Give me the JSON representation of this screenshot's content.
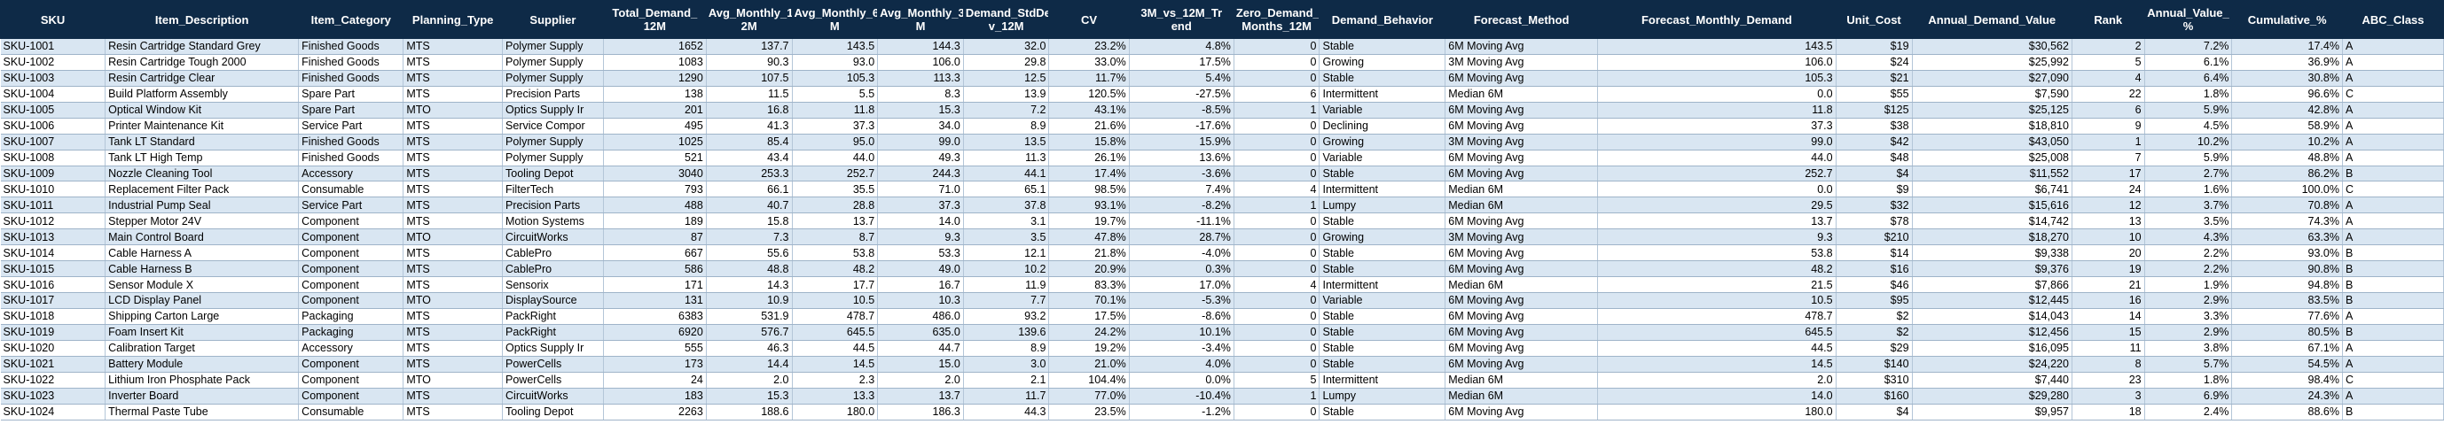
{
  "columns": [
    "SKU",
    "Item_Description",
    "Item_Category",
    "Planning_Type",
    "Supplier",
    "Total_Demand_12M",
    "Avg_Monthly_12M",
    "Avg_Monthly_6M",
    "Avg_Monthly_3M",
    "Demand_StdDev_12M",
    "CV",
    "3M_vs_12M_Trend",
    "Zero_Demand_Months_12M",
    "Demand_Behavior",
    "Forecast_Method",
    "Forecast_Monthly_Demand",
    "Unit_Cost",
    "Annual_Demand_Value",
    "Rank",
    "Annual_Value_%",
    "Cumulative_%",
    "ABC_Class"
  ],
  "header_lines": [
    [
      "SKU"
    ],
    [
      "Item_Description"
    ],
    [
      "Item_Category"
    ],
    [
      "Planning_Type"
    ],
    [
      "Supplier"
    ],
    [
      "Total_Demand_",
      "12M"
    ],
    [
      "Avg_Monthly_1",
      "2M"
    ],
    [
      "Avg_Monthly_6",
      "M"
    ],
    [
      "Avg_Monthly_3",
      "M"
    ],
    [
      "Demand_StdDe",
      "v_12M"
    ],
    [
      "CV"
    ],
    [
      "3M_vs_12M_Tr",
      "end"
    ],
    [
      "Zero_Demand_",
      "Months_12M"
    ],
    [
      "Demand_Behavior"
    ],
    [
      "Forecast_Method"
    ],
    [
      "Forecast_Monthly_Demand"
    ],
    [
      "Unit_Cost"
    ],
    [
      "Annual_Demand_Value"
    ],
    [
      "Rank"
    ],
    [
      "Annual_Value_",
      "%"
    ],
    [
      "Cumulative_%"
    ],
    [
      "ABC_Class"
    ]
  ],
  "rows": [
    [
      "SKU-1001",
      "Resin Cartridge Standard Grey",
      "Finished Goods",
      "MTS",
      "Polymer Supply",
      "1652",
      "137.7",
      "143.5",
      "144.3",
      "32.0",
      "23.2%",
      "4.8%",
      "0",
      "Stable",
      "6M Moving Avg",
      "143.5",
      "$19",
      "$30,562",
      "2",
      "7.2%",
      "17.4%",
      "A"
    ],
    [
      "SKU-1002",
      "Resin Cartridge Tough 2000",
      "Finished Goods",
      "MTS",
      "Polymer Supply",
      "1083",
      "90.3",
      "93.0",
      "106.0",
      "29.8",
      "33.0%",
      "17.5%",
      "0",
      "Growing",
      "3M Moving Avg",
      "106.0",
      "$24",
      "$25,992",
      "5",
      "6.1%",
      "36.9%",
      "A"
    ],
    [
      "SKU-1003",
      "Resin Cartridge Clear",
      "Finished Goods",
      "MTS",
      "Polymer Supply",
      "1290",
      "107.5",
      "105.3",
      "113.3",
      "12.5",
      "11.7%",
      "5.4%",
      "0",
      "Stable",
      "6M Moving Avg",
      "105.3",
      "$21",
      "$27,090",
      "4",
      "6.4%",
      "30.8%",
      "A"
    ],
    [
      "SKU-1004",
      "Build Platform Assembly",
      "Spare Part",
      "MTS",
      "Precision Parts",
      "138",
      "11.5",
      "5.5",
      "8.3",
      "13.9",
      "120.5%",
      "-27.5%",
      "6",
      "Intermittent",
      "Median 6M",
      "0.0",
      "$55",
      "$7,590",
      "22",
      "1.8%",
      "96.6%",
      "C"
    ],
    [
      "SKU-1005",
      "Optical Window Kit",
      "Spare Part",
      "MTO",
      "Optics Supply Ir",
      "201",
      "16.8",
      "11.8",
      "15.3",
      "7.2",
      "43.1%",
      "-8.5%",
      "1",
      "Variable",
      "6M Moving Avg",
      "11.8",
      "$125",
      "$25,125",
      "6",
      "5.9%",
      "42.8%",
      "A"
    ],
    [
      "SKU-1006",
      "Printer Maintenance Kit",
      "Service Part",
      "MTS",
      "Service Compor",
      "495",
      "41.3",
      "37.3",
      "34.0",
      "8.9",
      "21.6%",
      "-17.6%",
      "0",
      "Declining",
      "6M Moving Avg",
      "37.3",
      "$38",
      "$18,810",
      "9",
      "4.5%",
      "58.9%",
      "A"
    ],
    [
      "SKU-1007",
      "Tank LT Standard",
      "Finished Goods",
      "MTS",
      "Polymer Supply",
      "1025",
      "85.4",
      "95.0",
      "99.0",
      "13.5",
      "15.8%",
      "15.9%",
      "0",
      "Growing",
      "3M Moving Avg",
      "99.0",
      "$42",
      "$43,050",
      "1",
      "10.2%",
      "10.2%",
      "A"
    ],
    [
      "SKU-1008",
      "Tank LT High Temp",
      "Finished Goods",
      "MTS",
      "Polymer Supply",
      "521",
      "43.4",
      "44.0",
      "49.3",
      "11.3",
      "26.1%",
      "13.6%",
      "0",
      "Variable",
      "6M Moving Avg",
      "44.0",
      "$48",
      "$25,008",
      "7",
      "5.9%",
      "48.8%",
      "A"
    ],
    [
      "SKU-1009",
      "Nozzle Cleaning Tool",
      "Accessory",
      "MTS",
      "Tooling Depot",
      "3040",
      "253.3",
      "252.7",
      "244.3",
      "44.1",
      "17.4%",
      "-3.6%",
      "0",
      "Stable",
      "6M Moving Avg",
      "252.7",
      "$4",
      "$11,552",
      "17",
      "2.7%",
      "86.2%",
      "B"
    ],
    [
      "SKU-1010",
      "Replacement Filter Pack",
      "Consumable",
      "MTS",
      "FilterTech",
      "793",
      "66.1",
      "35.5",
      "71.0",
      "65.1",
      "98.5%",
      "7.4%",
      "4",
      "Intermittent",
      "Median 6M",
      "0.0",
      "$9",
      "$6,741",
      "24",
      "1.6%",
      "100.0%",
      "C"
    ],
    [
      "SKU-1011",
      "Industrial Pump Seal",
      "Service Part",
      "MTS",
      "Precision Parts",
      "488",
      "40.7",
      "28.8",
      "37.3",
      "37.8",
      "93.1%",
      "-8.2%",
      "1",
      "Lumpy",
      "Median 6M",
      "29.5",
      "$32",
      "$15,616",
      "12",
      "3.7%",
      "70.8%",
      "A"
    ],
    [
      "SKU-1012",
      "Stepper Motor 24V",
      "Component",
      "MTS",
      "Motion Systems",
      "189",
      "15.8",
      "13.7",
      "14.0",
      "3.1",
      "19.7%",
      "-11.1%",
      "0",
      "Stable",
      "6M Moving Avg",
      "13.7",
      "$78",
      "$14,742",
      "13",
      "3.5%",
      "74.3%",
      "A"
    ],
    [
      "SKU-1013",
      "Main Control Board",
      "Component",
      "MTO",
      "CircuitWorks",
      "87",
      "7.3",
      "8.7",
      "9.3",
      "3.5",
      "47.8%",
      "28.7%",
      "0",
      "Growing",
      "3M Moving Avg",
      "9.3",
      "$210",
      "$18,270",
      "10",
      "4.3%",
      "63.3%",
      "A"
    ],
    [
      "SKU-1014",
      "Cable Harness A",
      "Component",
      "MTS",
      "CablePro",
      "667",
      "55.6",
      "53.8",
      "53.3",
      "12.1",
      "21.8%",
      "-4.0%",
      "0",
      "Stable",
      "6M Moving Avg",
      "53.8",
      "$14",
      "$9,338",
      "20",
      "2.2%",
      "93.0%",
      "B"
    ],
    [
      "SKU-1015",
      "Cable Harness B",
      "Component",
      "MTS",
      "CablePro",
      "586",
      "48.8",
      "48.2",
      "49.0",
      "10.2",
      "20.9%",
      "0.3%",
      "0",
      "Stable",
      "6M Moving Avg",
      "48.2",
      "$16",
      "$9,376",
      "19",
      "2.2%",
      "90.8%",
      "B"
    ],
    [
      "SKU-1016",
      "Sensor Module X",
      "Component",
      "MTS",
      "Sensorix",
      "171",
      "14.3",
      "17.7",
      "16.7",
      "11.9",
      "83.3%",
      "17.0%",
      "4",
      "Intermittent",
      "Median 6M",
      "21.5",
      "$46",
      "$7,866",
      "21",
      "1.9%",
      "94.8%",
      "B"
    ],
    [
      "SKU-1017",
      "LCD Display Panel",
      "Component",
      "MTO",
      "DisplaySource",
      "131",
      "10.9",
      "10.5",
      "10.3",
      "7.7",
      "70.1%",
      "-5.3%",
      "0",
      "Variable",
      "6M Moving Avg",
      "10.5",
      "$95",
      "$12,445",
      "16",
      "2.9%",
      "83.5%",
      "B"
    ],
    [
      "SKU-1018",
      "Shipping Carton Large",
      "Packaging",
      "MTS",
      "PackRight",
      "6383",
      "531.9",
      "478.7",
      "486.0",
      "93.2",
      "17.5%",
      "-8.6%",
      "0",
      "Stable",
      "6M Moving Avg",
      "478.7",
      "$2",
      "$14,043",
      "14",
      "3.3%",
      "77.6%",
      "A"
    ],
    [
      "SKU-1019",
      "Foam Insert Kit",
      "Packaging",
      "MTS",
      "PackRight",
      "6920",
      "576.7",
      "645.5",
      "635.0",
      "139.6",
      "24.2%",
      "10.1%",
      "0",
      "Stable",
      "6M Moving Avg",
      "645.5",
      "$2",
      "$12,456",
      "15",
      "2.9%",
      "80.5%",
      "B"
    ],
    [
      "SKU-1020",
      "Calibration Target",
      "Accessory",
      "MTS",
      "Optics Supply Ir",
      "555",
      "46.3",
      "44.5",
      "44.7",
      "8.9",
      "19.2%",
      "-3.4%",
      "0",
      "Stable",
      "6M Moving Avg",
      "44.5",
      "$29",
      "$16,095",
      "11",
      "3.8%",
      "67.1%",
      "A"
    ],
    [
      "SKU-1021",
      "Battery Module",
      "Component",
      "MTS",
      "PowerCells",
      "173",
      "14.4",
      "14.5",
      "15.0",
      "3.0",
      "21.0%",
      "4.0%",
      "0",
      "Stable",
      "6M Moving Avg",
      "14.5",
      "$140",
      "$24,220",
      "8",
      "5.7%",
      "54.5%",
      "A"
    ],
    [
      "SKU-1022",
      "Lithium Iron Phosphate Pack",
      "Component",
      "MTO",
      "PowerCells",
      "24",
      "2.0",
      "2.3",
      "2.0",
      "2.1",
      "104.4%",
      "0.0%",
      "5",
      "Intermittent",
      "Median 6M",
      "2.0",
      "$310",
      "$7,440",
      "23",
      "1.8%",
      "98.4%",
      "C"
    ],
    [
      "SKU-1023",
      "Inverter Board",
      "Component",
      "MTS",
      "CircuitWorks",
      "183",
      "15.3",
      "13.3",
      "13.7",
      "11.7",
      "77.0%",
      "-10.4%",
      "1",
      "Lumpy",
      "Median 6M",
      "14.0",
      "$160",
      "$29,280",
      "3",
      "6.9%",
      "24.3%",
      "A"
    ],
    [
      "SKU-1024",
      "Thermal Paste Tube",
      "Consumable",
      "MTS",
      "Tooling Depot",
      "2263",
      "188.6",
      "180.0",
      "186.3",
      "44.3",
      "23.5%",
      "-1.2%",
      "0",
      "Stable",
      "6M Moving Avg",
      "180.0",
      "$4",
      "$9,957",
      "18",
      "2.4%",
      "88.6%",
      "B"
    ]
  ]
}
